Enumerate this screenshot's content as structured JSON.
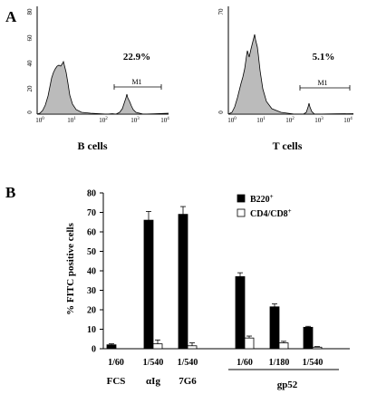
{
  "panel_a": {
    "letter": "A",
    "histograms": [
      {
        "label": "B cells",
        "percent_label": "22.9%",
        "gate_label": "M1",
        "y_ticks": [
          "0",
          "20",
          "40",
          "60",
          "80"
        ],
        "x_ticks": [
          {
            "base": "10",
            "exp": "0"
          },
          {
            "base": "10",
            "exp": "1"
          },
          {
            "base": "10",
            "exp": "2"
          },
          {
            "base": "10",
            "exp": "3"
          },
          {
            "base": "10",
            "exp": "4"
          }
        ]
      },
      {
        "label": "T cells",
        "percent_label": "5.1%",
        "gate_label": "M1",
        "y_ticks": [
          "0",
          "70"
        ],
        "x_ticks": [
          {
            "base": "10",
            "exp": "0"
          },
          {
            "base": "10",
            "exp": "1"
          },
          {
            "base": "10",
            "exp": "2"
          },
          {
            "base": "10",
            "exp": "3"
          },
          {
            "base": "10",
            "exp": "4"
          }
        ]
      }
    ]
  },
  "panel_b": {
    "letter": "B",
    "legend": [
      {
        "label": "B220",
        "sup": "+",
        "color": "#000000"
      },
      {
        "label": "CD4/CD8",
        "sup": "+",
        "color": "#ffffff"
      }
    ],
    "group_labels": [
      "FCS",
      "αIg",
      "7G6",
      "gp52"
    ]
  },
  "chart_data": {
    "type": "bar",
    "ylabel": "% FITC positive cells",
    "ylim": [
      0,
      80
    ],
    "y_ticks": [
      0,
      10,
      20,
      30,
      40,
      50,
      60,
      70,
      80
    ],
    "categories": [
      "1/60",
      "1/540",
      "1/540",
      "1/60",
      "1/180",
      "1/540"
    ],
    "groups": [
      "FCS",
      "αIg",
      "7G6",
      "gp52",
      "gp52",
      "gp52"
    ],
    "series": [
      {
        "name": "B220+",
        "color": "#000000",
        "values": [
          2,
          66,
          69,
          37,
          21.5,
          11
        ],
        "errors": [
          0.5,
          4.5,
          4,
          2,
          1.5,
          0.5
        ]
      },
      {
        "name": "CD4/CD8+",
        "color": "#ffffff",
        "values": [
          null,
          2.5,
          1.5,
          5.5,
          3,
          0.8
        ],
        "errors": [
          null,
          2,
          1.5,
          1,
          0.8,
          0.3
        ]
      }
    ]
  }
}
